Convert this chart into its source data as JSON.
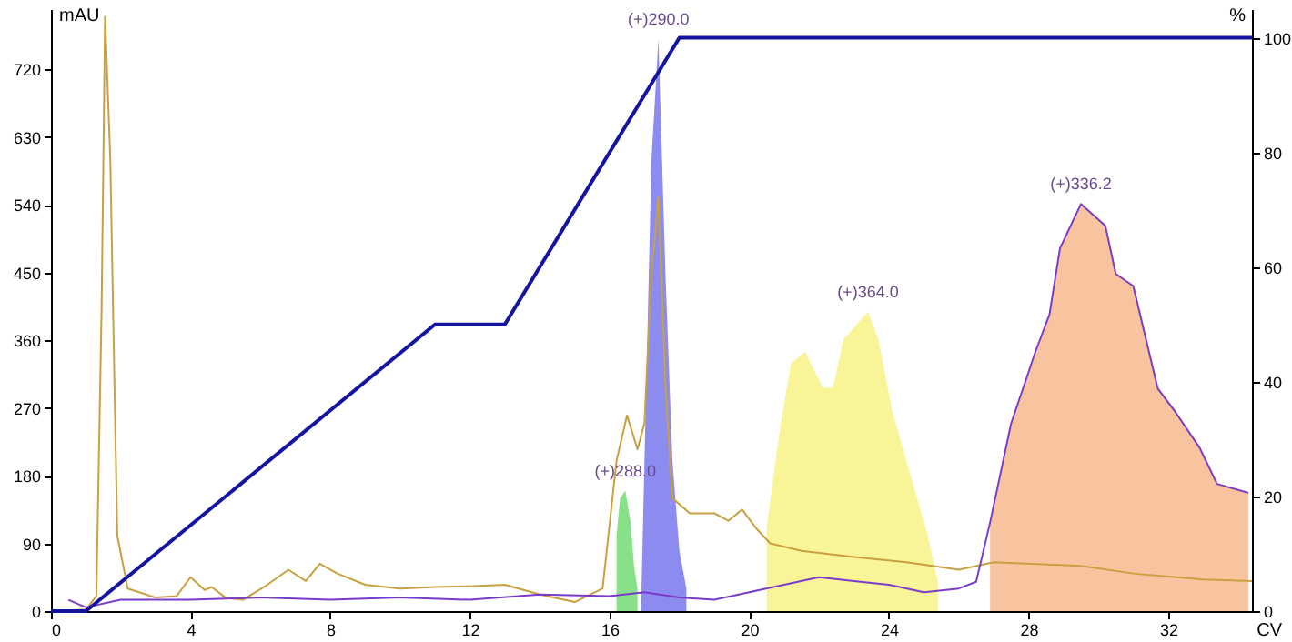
{
  "chart_data": {
    "type": "line",
    "xlabel": "CV",
    "ylabel": "mAU",
    "y2label": "%",
    "xlim": [
      0,
      34.4
    ],
    "xticks": [
      0,
      4,
      8,
      12,
      16,
      20,
      24,
      28,
      32
    ],
    "ylim": [
      0,
      800
    ],
    "yticks": [
      0,
      90,
      180,
      270,
      360,
      450,
      540,
      630,
      720
    ],
    "y2lim": [
      0,
      105
    ],
    "y2ticks": [
      0,
      20,
      40,
      60,
      80,
      100
    ],
    "grid": false,
    "marker": "none",
    "line_style": "solid",
    "series": [
      {
        "type": "area",
        "color": "#88e088",
        "x": [
          16.2,
          16.3,
          16.45,
          16.6,
          16.7,
          16.8
        ],
        "values": [
          100,
          150,
          160,
          120,
          60,
          30
        ]
      },
      {
        "type": "area",
        "color": "#8c8cf0",
        "x": [
          16.9,
          17.0,
          17.2,
          17.4,
          17.6,
          17.8,
          18.0,
          18.2
        ],
        "values": [
          0,
          200,
          600,
          760,
          450,
          200,
          80,
          30
        ]
      },
      {
        "type": "area",
        "color": "#f8f498",
        "x": [
          20.5,
          20.9,
          21.2,
          21.6,
          22.1,
          22.4,
          22.7,
          23.4,
          23.7,
          24.1,
          24.6,
          25.1,
          25.4
        ],
        "values": [
          111,
          249,
          329,
          345,
          297,
          297,
          361,
          398,
          361,
          265,
          184,
          103,
          39
        ]
      },
      {
        "type": "area",
        "color": "#f8c4a0",
        "x": [
          26.9,
          27.5,
          28.2,
          28.6,
          28.9,
          29.5,
          30.2,
          30.5,
          31.0,
          31.7,
          32.2,
          32.9,
          33.4,
          34.3
        ],
        "values": [
          118,
          249,
          345,
          394,
          482,
          541,
          512,
          448,
          432,
          296,
          265,
          217,
          169,
          157
        ]
      },
      {
        "color": "#c8a040",
        "x": [
          0,
          1.0,
          1.3,
          1.45,
          1.55,
          1.7,
          1.9,
          2.2,
          3,
          3.6,
          4,
          4.4,
          4.6,
          5,
          5.5,
          6.2,
          6.8,
          7.3,
          7.7,
          8.2,
          9,
          10,
          11,
          12,
          13,
          14,
          15,
          15.8,
          16.2,
          16.5,
          16.8,
          17.0,
          17.2,
          17.4,
          17.6,
          17.8,
          18.3,
          19,
          19.4,
          19.8,
          20.2,
          20.6,
          21.5,
          23,
          24.5,
          26,
          27,
          29.5,
          31,
          33,
          34.4
        ],
        "values": [
          0,
          2,
          20,
          400,
          790,
          600,
          100,
          30,
          18,
          20,
          45,
          28,
          32,
          18,
          15,
          35,
          55,
          40,
          63,
          50,
          35,
          30,
          32,
          33,
          35,
          22,
          12,
          30,
          200,
          260,
          215,
          250,
          450,
          550,
          300,
          150,
          130,
          130,
          120,
          135,
          110,
          90,
          80,
          72,
          65,
          55,
          65,
          60,
          50,
          42,
          40
        ]
      },
      {
        "color": "#7a3cc8",
        "x": [
          0.5,
          1,
          2,
          4,
          6,
          8,
          10,
          12,
          14,
          16,
          17,
          18,
          19,
          20,
          21,
          22,
          23,
          24,
          25,
          26,
          26.5,
          26.9,
          27.5,
          28.2,
          28.6,
          28.9,
          29.5,
          30.2,
          30.5,
          31.0,
          31.7,
          32.2,
          32.9,
          33.4,
          34.3
        ],
        "values": [
          15,
          5,
          15,
          15,
          18,
          15,
          18,
          15,
          22,
          20,
          25,
          18,
          15,
          25,
          35,
          45,
          40,
          35,
          25,
          30,
          39,
          118,
          249,
          345,
          394,
          482,
          541,
          512,
          448,
          432,
          296,
          265,
          217,
          169,
          157
        ]
      },
      {
        "axis": "y2",
        "color": "#1414a0",
        "x": [
          0,
          1,
          11,
          13,
          18,
          34.4
        ],
        "values": [
          0,
          0,
          50,
          50,
          100,
          100
        ]
      }
    ],
    "annotations": [
      {
        "text": "(+)288.0",
        "x": 16.45,
        "y": 160
      },
      {
        "text": "(+)290.0",
        "x": 17.4,
        "y": 760
      },
      {
        "text": "(+)364.0",
        "x": 23.4,
        "y": 398
      },
      {
        "text": "(+)336.2",
        "x": 29.5,
        "y": 541
      }
    ]
  }
}
